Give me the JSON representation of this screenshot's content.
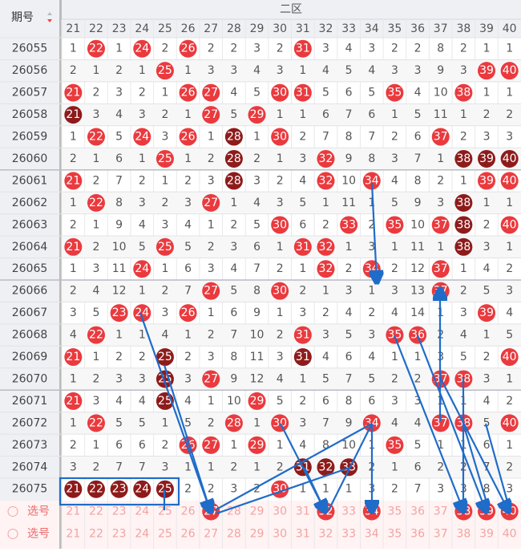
{
  "header": {
    "period_label": "期号",
    "zone_label": "二区",
    "columns": [
      "21",
      "22",
      "23",
      "24",
      "25",
      "26",
      "27",
      "28",
      "29",
      "30",
      "31",
      "32",
      "33",
      "34",
      "35",
      "36",
      "37",
      "38",
      "39",
      "40"
    ]
  },
  "rows": [
    {
      "period": "26055",
      "cells": [
        1,
        22,
        1,
        24,
        2,
        26,
        2,
        2,
        3,
        2,
        31,
        3,
        4,
        3,
        2,
        2,
        8,
        2,
        1,
        1
      ],
      "kinds": "nrnrnrnnnnrnnnnnnnnn"
    },
    {
      "period": "26056",
      "cells": [
        2,
        1,
        2,
        1,
        25,
        1,
        3,
        3,
        4,
        3,
        1,
        4,
        5,
        4,
        3,
        3,
        9,
        3,
        39,
        40
      ],
      "kinds": "nnnnrnnnnnnnnnnnnnrr"
    },
    {
      "period": "26057",
      "cells": [
        21,
        2,
        3,
        2,
        1,
        26,
        27,
        4,
        5,
        30,
        31,
        5,
        6,
        5,
        35,
        4,
        10,
        38,
        1,
        1
      ],
      "kinds": "rnnnnrrnnrrnnnrnnrnn"
    },
    {
      "period": "26058",
      "cells": [
        21,
        3,
        4,
        3,
        2,
        1,
        27,
        5,
        29,
        1,
        1,
        6,
        7,
        6,
        1,
        5,
        11,
        1,
        2,
        2
      ],
      "kinds": "dnnnnnrnrnnnnnnnnnnn"
    },
    {
      "period": "26059",
      "cells": [
        1,
        22,
        5,
        24,
        3,
        26,
        1,
        28,
        1,
        30,
        2,
        7,
        8,
        7,
        2,
        6,
        37,
        2,
        3,
        3
      ],
      "kinds": "nrnrnrndnrnnnnnnrnnn"
    },
    {
      "period": "26060",
      "cells": [
        2,
        1,
        6,
        1,
        25,
        1,
        2,
        28,
        2,
        1,
        3,
        32,
        9,
        8,
        3,
        7,
        1,
        38,
        39,
        40
      ],
      "kinds": "nnnnrnndnnnrnnnnnddd"
    },
    {
      "period": "26061",
      "cells": [
        21,
        2,
        7,
        2,
        1,
        2,
        3,
        28,
        3,
        2,
        4,
        32,
        10,
        34,
        4,
        8,
        2,
        1,
        39,
        40
      ],
      "kinds": "rnnnnnndnnnrnrnnnnrr"
    },
    {
      "period": "26062",
      "cells": [
        1,
        22,
        8,
        3,
        2,
        3,
        27,
        1,
        4,
        3,
        5,
        1,
        11,
        1,
        5,
        9,
        3,
        38,
        1,
        1
      ],
      "kinds": "nrnnnnrnnnnnnnnnndnn"
    },
    {
      "period": "26063",
      "cells": [
        2,
        1,
        9,
        4,
        3,
        4,
        1,
        2,
        5,
        30,
        6,
        2,
        33,
        2,
        35,
        10,
        37,
        38,
        2,
        40
      ],
      "kinds": "nnnnnnnnnrnnrnrnrdnr"
    },
    {
      "period": "26064",
      "cells": [
        21,
        2,
        10,
        5,
        25,
        5,
        2,
        3,
        6,
        1,
        31,
        32,
        1,
        3,
        1,
        11,
        1,
        38,
        3,
        1
      ],
      "kinds": "rnnnrnnnnnrrnnnnndnn"
    },
    {
      "period": "26065",
      "cells": [
        1,
        3,
        11,
        24,
        1,
        6,
        3,
        4,
        7,
        2,
        1,
        32,
        2,
        34,
        2,
        12,
        37,
        1,
        4,
        2
      ],
      "kinds": "nnnrnnnnnnnrnrnnrnnn"
    },
    {
      "period": "26066",
      "cells": [
        2,
        4,
        12,
        1,
        2,
        7,
        27,
        5,
        8,
        30,
        2,
        1,
        3,
        1,
        3,
        13,
        37,
        2,
        5,
        3
      ],
      "kinds": "nnnnnnrnnrnnnnnnrnnn"
    },
    {
      "period": "26067",
      "cells": [
        3,
        5,
        23,
        24,
        3,
        26,
        1,
        6,
        9,
        1,
        3,
        2,
        4,
        2,
        4,
        14,
        1,
        3,
        39,
        4
      ],
      "kinds": "nnrrnrnnnnnnnnnnnnrn"
    },
    {
      "period": "26068",
      "cells": [
        4,
        22,
        1,
        1,
        4,
        1,
        2,
        7,
        10,
        2,
        31,
        3,
        5,
        3,
        35,
        36,
        2,
        4,
        1,
        5
      ],
      "kinds": "nrnnnnnnnnrnnnrrnnnn"
    },
    {
      "period": "26069",
      "cells": [
        21,
        1,
        2,
        2,
        25,
        2,
        3,
        8,
        11,
        3,
        31,
        4,
        6,
        4,
        1,
        1,
        3,
        5,
        2,
        40
      ],
      "kinds": "rnnndnnnnndnnnnnnnnr"
    },
    {
      "period": "26070",
      "cells": [
        1,
        2,
        3,
        3,
        25,
        3,
        27,
        9,
        12,
        4,
        1,
        5,
        7,
        5,
        2,
        2,
        37,
        38,
        3,
        1
      ],
      "kinds": "nnnndnrnnnnnnnnnrrnn"
    },
    {
      "period": "26071",
      "cells": [
        21,
        3,
        4,
        4,
        25,
        4,
        1,
        10,
        29,
        5,
        2,
        6,
        8,
        6,
        3,
        3,
        1,
        1,
        4,
        2
      ],
      "kinds": "rnnndnnnrnnnnnnnnnnn"
    },
    {
      "period": "26072",
      "cells": [
        1,
        22,
        5,
        5,
        1,
        5,
        2,
        28,
        1,
        30,
        3,
        7,
        9,
        34,
        4,
        4,
        37,
        38,
        5,
        40
      ],
      "kinds": "nrnnnnnrnrnnnrnnrrnr"
    },
    {
      "period": "26073",
      "cells": [
        2,
        1,
        6,
        6,
        2,
        26,
        27,
        1,
        29,
        1,
        4,
        8,
        10,
        1,
        35,
        5,
        1,
        1,
        6,
        1
      ],
      "kinds": "nnnnnrrnrnnnnnrnnnnn"
    },
    {
      "period": "26074",
      "cells": [
        3,
        2,
        7,
        7,
        3,
        1,
        1,
        2,
        1,
        2,
        31,
        32,
        33,
        2,
        1,
        6,
        2,
        2,
        7,
        2
      ],
      "kinds": "nnnnnnnnnndddnnnnnnn"
    },
    {
      "period": "26075",
      "cells": [
        21,
        22,
        23,
        24,
        25,
        2,
        2,
        3,
        2,
        30,
        1,
        1,
        1,
        3,
        2,
        7,
        3,
        3,
        8,
        3
      ],
      "kinds": "dddddnnnnrnnnnnnnnnn"
    }
  ],
  "selection": {
    "label": "选号",
    "rows": [
      {
        "cells": [
          "21",
          "22",
          "23",
          "24",
          "25",
          "26",
          "27",
          "28",
          "29",
          "30",
          "31",
          "32",
          "33",
          "34",
          "35",
          "36",
          "37",
          "38",
          "39",
          "40"
        ],
        "kinds": "nnnnnnrnnnnrnrnnnrrr"
      },
      {
        "cells": [
          "21",
          "22",
          "23",
          "24",
          "25",
          "26",
          "27",
          "28",
          "29",
          "30",
          "31",
          "32",
          "33",
          "34",
          "35",
          "36",
          "37",
          "38",
          "39",
          "40"
        ],
        "kinds": "nnnnnnnnnnnnnnnnnnnn"
      }
    ]
  }
}
